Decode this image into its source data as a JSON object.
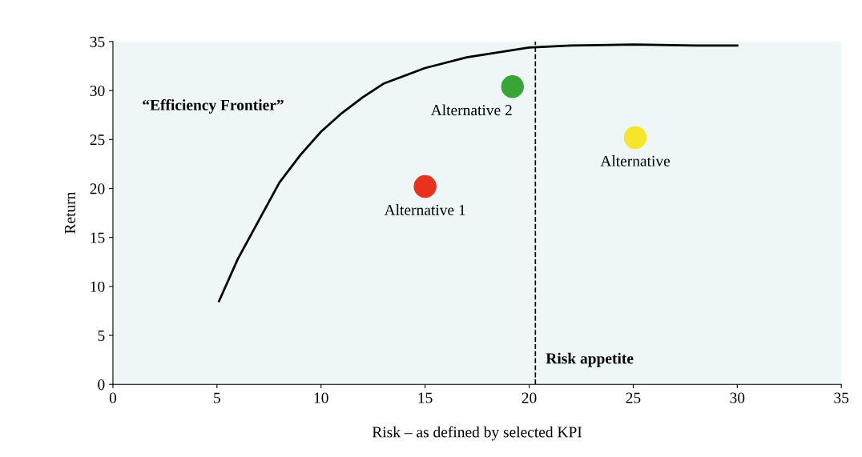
{
  "chart_data": {
    "type": "line",
    "xlabel": "Risk – as defined by selected KPI",
    "ylabel": "Return",
    "xlim": [
      0,
      35
    ],
    "ylim": [
      0,
      35
    ],
    "xticks": [
      0,
      5,
      10,
      15,
      20,
      25,
      30,
      35
    ],
    "yticks": [
      0,
      5,
      10,
      15,
      20,
      25,
      30,
      35
    ],
    "grid": false,
    "legend": false,
    "line_style": "solid",
    "series": [
      {
        "name": "“Efficiency Frontier”",
        "marker": "none",
        "color": "#000000",
        "x": [
          5.1,
          6,
          7,
          8,
          9,
          10,
          11,
          12,
          13,
          15,
          17,
          20,
          22,
          25,
          28,
          30
        ],
        "values": [
          8.5,
          12.8,
          16.7,
          20.6,
          23.4,
          25.8,
          27.7,
          29.3,
          30.7,
          32.3,
          33.4,
          34.4,
          34.6,
          34.7,
          34.6,
          34.6
        ]
      },
      {
        "name": "Alternative 1",
        "type": "scatter",
        "marker": "circle",
        "color": "#e8321e",
        "x": [
          15.0
        ],
        "values": [
          20.2
        ]
      },
      {
        "name": "Alternative 2",
        "type": "scatter",
        "marker": "circle",
        "color": "#3aa537",
        "x": [
          19.2
        ],
        "values": [
          30.4
        ]
      },
      {
        "name": "Alternative",
        "type": "scatter",
        "marker": "circle",
        "color": "#f5e62a",
        "x": [
          25.1
        ],
        "values": [
          25.2
        ]
      }
    ],
    "ref_lines": [
      {
        "axis": "x",
        "value": 20.3,
        "label": "Risk appetite",
        "line_style": "dashed",
        "color": "#000000"
      }
    ]
  }
}
